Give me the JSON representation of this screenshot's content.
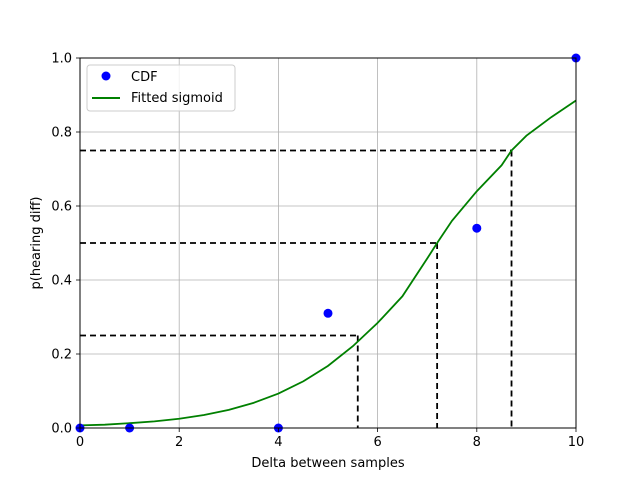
{
  "chart_data": {
    "type": "scatter",
    "xlabel": "Delta between samples",
    "ylabel": "p(hearing diff)",
    "xlim": [
      0,
      10
    ],
    "ylim": [
      0,
      1
    ],
    "xticks": [
      0,
      2,
      4,
      6,
      8,
      10
    ],
    "yticks": [
      0.0,
      0.2,
      0.4,
      0.6,
      0.8,
      1.0
    ],
    "xtick_labels": [
      "0",
      "2",
      "4",
      "6",
      "8",
      "10"
    ],
    "ytick_labels": [
      "0.0",
      "0.2",
      "0.4",
      "0.6",
      "0.8",
      "1.0"
    ],
    "grid": true,
    "legend_position": "top-left",
    "series": [
      {
        "name": "CDF",
        "kind": "points",
        "color": "#0000ff",
        "x": [
          0,
          1,
          4,
          5,
          8,
          10
        ],
        "y": [
          0.0,
          0.0,
          0.0,
          0.31,
          0.54,
          1.0
        ]
      },
      {
        "name": "Fitted sigmoid",
        "kind": "line",
        "color": "#008000",
        "x": [
          0,
          0.5,
          1,
          1.5,
          2,
          2.5,
          3,
          3.5,
          4,
          4.5,
          5,
          5.5,
          6,
          6.5,
          7,
          7.2,
          7.5,
          8,
          8.5,
          8.7,
          9,
          9.5,
          10
        ],
        "y": [
          0.007,
          0.009,
          0.013,
          0.018,
          0.025,
          0.035,
          0.049,
          0.068,
          0.093,
          0.126,
          0.168,
          0.221,
          0.284,
          0.356,
          0.458,
          0.5,
          0.56,
          0.64,
          0.71,
          0.75,
          0.79,
          0.84,
          0.885
        ]
      }
    ],
    "reference_lines": [
      {
        "p": 0.25,
        "x": 5.6
      },
      {
        "p": 0.5,
        "x": 7.2
      },
      {
        "p": 0.75,
        "x": 8.7
      }
    ],
    "reference_line_color": "#000000"
  }
}
